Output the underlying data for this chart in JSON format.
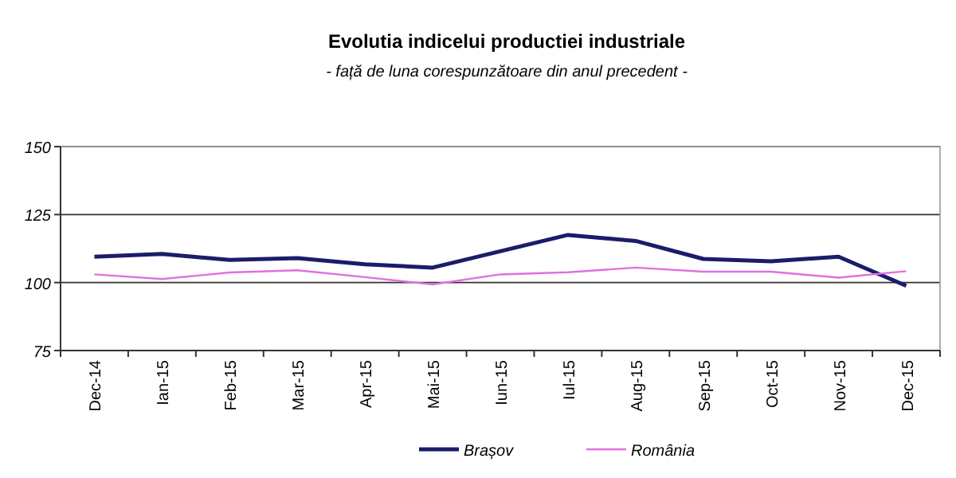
{
  "chart_data": {
    "type": "line",
    "title": "Evolutia indicelui productiei industriale",
    "subtitle": "- față de luna corespunzătoare din anul precedent -",
    "categories": [
      "Dec-14",
      "Ian-15",
      "Feb-15",
      "Mar-15",
      "Apr-15",
      "Mai-15",
      "Iun-15",
      "Iul-15",
      "Aug-15",
      "Sep-15",
      "Oct-15",
      "Nov-15",
      "Dec-15"
    ],
    "series": [
      {
        "name": "Brașov",
        "color": "#1c1c6b",
        "values": [
          109.5,
          110.5,
          108.3,
          109,
          106.7,
          105.5,
          111.5,
          117.5,
          115.3,
          108.7,
          107.8,
          109.5,
          98.8
        ]
      },
      {
        "name": "România",
        "color": "#e070e0",
        "values": [
          103,
          101.3,
          103.7,
          104.5,
          102,
          99.3,
          103,
          103.8,
          105.5,
          104,
          104,
          101.8,
          104.2
        ]
      }
    ],
    "ylim": [
      75,
      150
    ],
    "yticks": [
      75,
      100,
      125,
      150
    ],
    "grid": "y",
    "legend": "bottom",
    "marker": "none",
    "line_style": "solid"
  }
}
